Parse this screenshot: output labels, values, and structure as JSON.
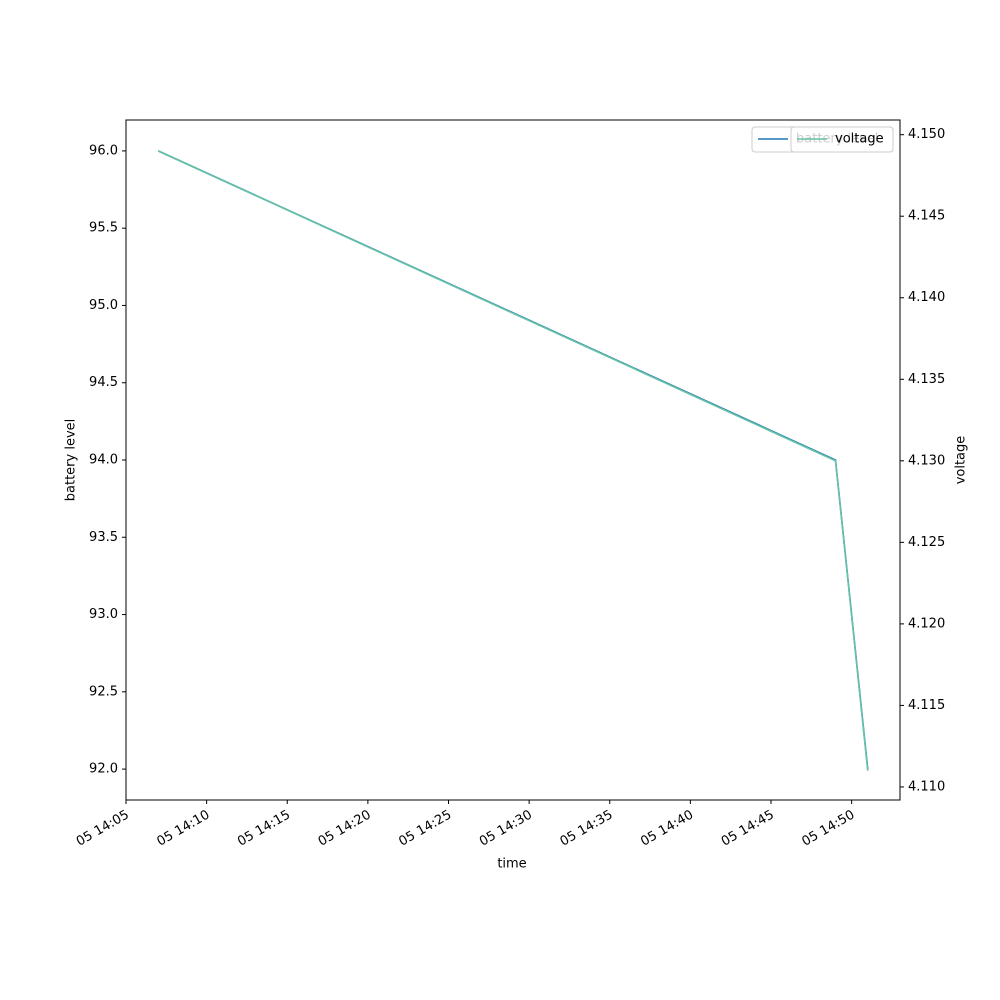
{
  "chart_data": {
    "type": "line",
    "x": [
      "05 14:07",
      "05 14:49",
      "05 14:51"
    ],
    "xlim": [
      "05 14:05",
      "05 14:53"
    ],
    "xticks": [
      "05 14:05",
      "05 14:10",
      "05 14:15",
      "05 14:20",
      "05 14:25",
      "05 14:30",
      "05 14:35",
      "05 14:40",
      "05 14:45",
      "05 14:50"
    ],
    "xlabel": "time",
    "ylabel": "battery level",
    "y2label": "voltage",
    "ylim": [
      91.8,
      96.2
    ],
    "yticks": [
      {
        "value": 92,
        "label": "92.0"
      },
      92.5,
      {
        "value": 93,
        "label": "93.0"
      },
      93.5,
      {
        "value": 94,
        "label": "94.0"
      },
      94.5,
      {
        "value": 95,
        "label": "95.0"
      },
      95.5,
      {
        "value": 96,
        "label": "96.0"
      }
    ],
    "y2lim": [
      4.1092,
      4.1509
    ],
    "y2ticks": [
      {
        "value": 4.11,
        "label": "4.110"
      },
      4.115,
      {
        "value": 4.12,
        "label": "4.120"
      },
      4.125,
      {
        "value": 4.13,
        "label": "4.130"
      },
      4.135,
      {
        "value": 4.14,
        "label": "4.140"
      },
      4.145,
      {
        "value": 4.15,
        "label": "4.150"
      }
    ],
    "legend": "upper right",
    "series": [
      {
        "name": "battery level",
        "color": "#1f77b4",
        "values": [
          96,
          94,
          92
        ]
      },
      {
        "name": "voltage",
        "color": "#66c2a5",
        "axis": "y2",
        "values": [
          4.149,
          4.13,
          4.111
        ]
      }
    ]
  }
}
